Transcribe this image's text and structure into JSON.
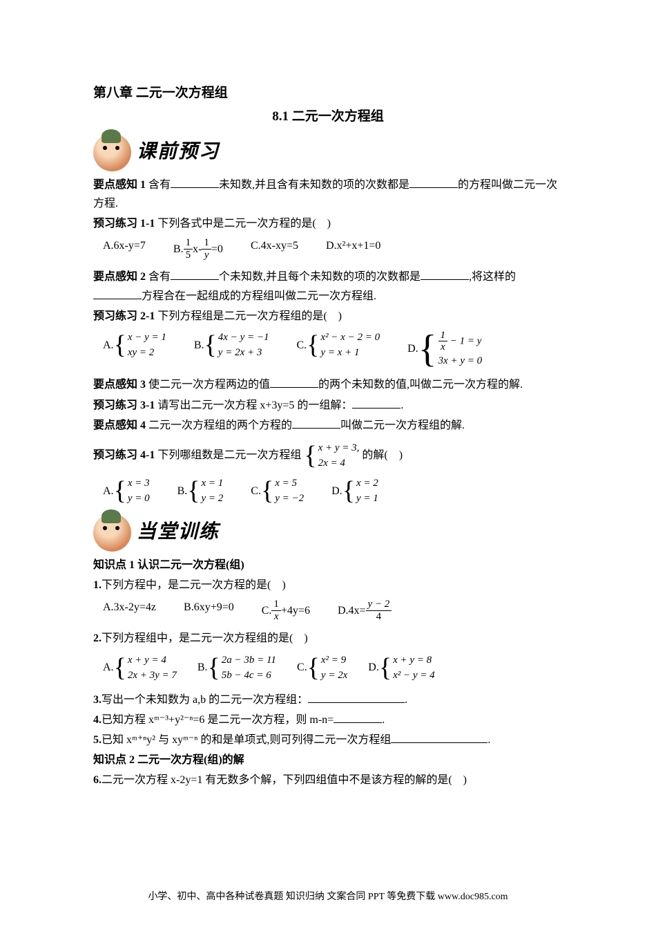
{
  "chapter": "第八章 二元一次方程组",
  "section": "8.1 二元一次方程组",
  "banner1": "课前预习",
  "yd1_label": "要点感知 1",
  "yd1_text_1": " 含有",
  "yd1_text_2": "未知数,并且含有未知数的项的次数都是",
  "yd1_text_3": "的方程叫做二元一次方程.",
  "yx11_label": "预习练习 1-1",
  "yx11_text": " 下列各式中是二元一次方程的是(　)",
  "opt11_a": "A.6x-y=7",
  "opt11_b_pre": "B.",
  "opt11_b_f1n": "1",
  "opt11_b_f1d": "5",
  "opt11_b_mid": "x-",
  "opt11_b_f2n": "1",
  "opt11_b_f2d": "y",
  "opt11_b_post": "=0",
  "opt11_c": "C.4x-xy=5",
  "opt11_d": "D.x²+x+1=0",
  "yd2_label": "要点感知 2",
  "yd2_text_1": " 含有",
  "yd2_text_2": "个未知数,并且每个未知数的项的次数都是",
  "yd2_text_3": ",将这样的",
  "yd2_text_4": "方程合在一起组成的方程组叫做二元一次方程组.",
  "yx21_label": "预习练习 2-1",
  "yx21_text": " 下列方程组是二元一次方程组的是(　)",
  "opt21_a_pre": "A.",
  "opt21_a_l1": "x − y = 1",
  "opt21_a_l2": "xy = 2",
  "opt21_b_pre": "B.",
  "opt21_b_l1": "4x − y = −1",
  "opt21_b_l2": "y = 2x + 3",
  "opt21_c_pre": "C.",
  "opt21_c_l1": "x² − x − 2 = 0",
  "opt21_c_l2": "y = x + 1",
  "opt21_d_pre": "D.",
  "opt21_d_f1n": "1",
  "opt21_d_f1d": "x",
  "opt21_d_l1_post": " − 1 = y",
  "opt21_d_l2": "3x + y = 0",
  "yd3_label": "要点感知 3",
  "yd3_text_1": " 使二元一次方程两边的值",
  "yd3_text_2": "的两个未知数的值,叫做二元一次方程的解.",
  "yx31_label": "预习练习 3-1",
  "yx31_text_1": " 请写出二元一次方程 x+3y=5 的一组解：",
  "yx31_text_2": ".",
  "yd4_label": "要点感知 4",
  "yd4_text_1": " 二元一次方程组的两个方程的",
  "yd4_text_2": "叫做二元一次方程组的解.",
  "yx41_label": "预习练习 4-1",
  "yx41_text_1": " 下列哪组数是二元一次方程组",
  "yx41_sys_l1": "x + y = 3,",
  "yx41_sys_l2": "2x = 4",
  "yx41_text_2": "的解(　)",
  "opt41_a_pre": "A.",
  "opt41_a_l1": "x = 3",
  "opt41_a_l2": "y = 0",
  "opt41_b_pre": "B.",
  "opt41_b_l1": "x = 1",
  "opt41_b_l2": "y = 2",
  "opt41_c_pre": "C.",
  "opt41_c_l1": "x = 5",
  "opt41_c_l2": "y = −2",
  "opt41_d_pre": "D.",
  "opt41_d_l1": "x = 2",
  "opt41_d_l2": "y = 1",
  "banner2": "当堂训练",
  "zsd1": "知识点 1 认识二元一次方程(组)",
  "q1_label": "1.",
  "q1_text": "下列方程中，是二元一次方程的是(　)",
  "q1_a": "A.3x-2y=4z",
  "q1_b": "B.6xy+9=0",
  "q1_c_pre": "C.",
  "q1_c_f1n": "1",
  "q1_c_f1d": "x",
  "q1_c_post": "+4y=6",
  "q1_d_pre": "D.4x=",
  "q1_d_f1n": "y − 2",
  "q1_d_f1d": "4",
  "q2_label": "2.",
  "q2_text": "下列方程组中，是二元一次方程组的是(　)",
  "q2_a_pre": "A.",
  "q2_a_l1": "x + y = 4",
  "q2_a_l2": "2x + 3y = 7",
  "q2_b_pre": "B.",
  "q2_b_l1": "2a − 3b = 11",
  "q2_b_l2": "5b − 4c = 6",
  "q2_c_pre": "C.",
  "q2_c_l1": "x² = 9",
  "q2_c_l2": "y = 2x",
  "q2_d_pre": "D.",
  "q2_d_l1": "x + y = 8",
  "q2_d_l2": "x² − y = 4",
  "q3_label": "3.",
  "q3_text_1": "写出一个未知数为 a,b 的二元一次方程组：",
  "q3_text_2": ".",
  "q4_label": "4.",
  "q4_text_1": "已知方程 xᵐ⁻³+y²⁻ⁿ=6 是二元一次方程，则 m-n=",
  "q4_text_2": ".",
  "q5_label": "5.",
  "q5_text_1": "已知 xᵐ⁺ⁿy² 与 xyᵐ⁻ⁿ 的和是单项式,则可列得二元一次方程组",
  "q5_text_2": ".",
  "zsd2": "知识点 2 二元一次方程(组)的解",
  "q6_label": "6.",
  "q6_text": "二元一次方程 x-2y=1 有无数多个解，下列四组值中不是该方程的解的是(　)",
  "footer": "小学、初中、高中各种试卷真题 知识归纳 文案合同 PPT 等免费下载 www.doc985.com"
}
